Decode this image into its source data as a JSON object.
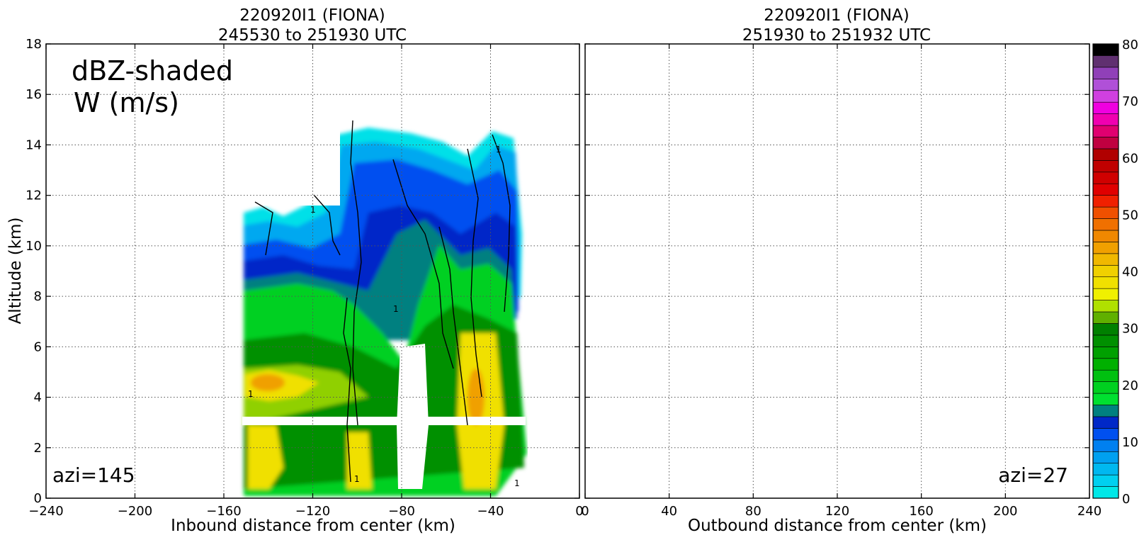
{
  "chart_data": [
    {
      "type": "heatmap",
      "title_line1": "220920I1 (FIONA)",
      "title_line2": "245530 to 251930 UTC",
      "xlabel": "Inbound distance from center (km)",
      "ylabel": "Altitude (km)",
      "xlim": [
        -240,
        0
      ],
      "ylim": [
        0,
        18
      ],
      "x_ticks": [
        "−240",
        "−200",
        "−160",
        "−120",
        "−80",
        "−40",
        "0"
      ],
      "y_ticks": [
        "0",
        "2",
        "4",
        "6",
        "8",
        "10",
        "12",
        "14",
        "16",
        "18"
      ],
      "grid": true,
      "annotation_top": "dBZ-shaded",
      "annotation_top2": "W (m/s)",
      "annotation_bottom": "azi=145",
      "has_data": true,
      "data_x_range_km": [
        -152,
        -24
      ],
      "data_y_range_km": [
        0.4,
        14.8
      ],
      "w_contour_label": "1"
    },
    {
      "type": "heatmap",
      "title_line1": "220920I1 (FIONA)",
      "title_line2": "251930 to 251932 UTC",
      "xlabel": "Outbound distance from center (km)",
      "xlim": [
        0,
        240
      ],
      "ylim": [
        0,
        18
      ],
      "x_ticks": [
        "0",
        "40",
        "80",
        "120",
        "160",
        "200",
        "240"
      ],
      "grid": true,
      "annotation_bottom": "azi=27",
      "has_data": false
    }
  ],
  "colorbar": {
    "range": [
      0,
      80
    ],
    "tick_labels": [
      "0",
      "10",
      "20",
      "30",
      "40",
      "50",
      "60",
      "70",
      "80"
    ],
    "colors": [
      "#00e8e8",
      "#00d0f0",
      "#00b8f0",
      "#00a0f0",
      "#0080f0",
      "#0050f0",
      "#0028c8",
      "#008080",
      "#00e030",
      "#00d020",
      "#00c010",
      "#00b000",
      "#00a000",
      "#009000",
      "#008000",
      "#60b000",
      "#b0e000",
      "#f0f000",
      "#f0e000",
      "#f0d000",
      "#f0b800",
      "#f0a000",
      "#f08800",
      "#f07000",
      "#f05000",
      "#f02000",
      "#e00000",
      "#d00000",
      "#c00000",
      "#b00000",
      "#c00040",
      "#e00070",
      "#f000b0",
      "#f000e0",
      "#d040e0",
      "#b050d8",
      "#9040b8",
      "#603070",
      "#000000"
    ]
  }
}
